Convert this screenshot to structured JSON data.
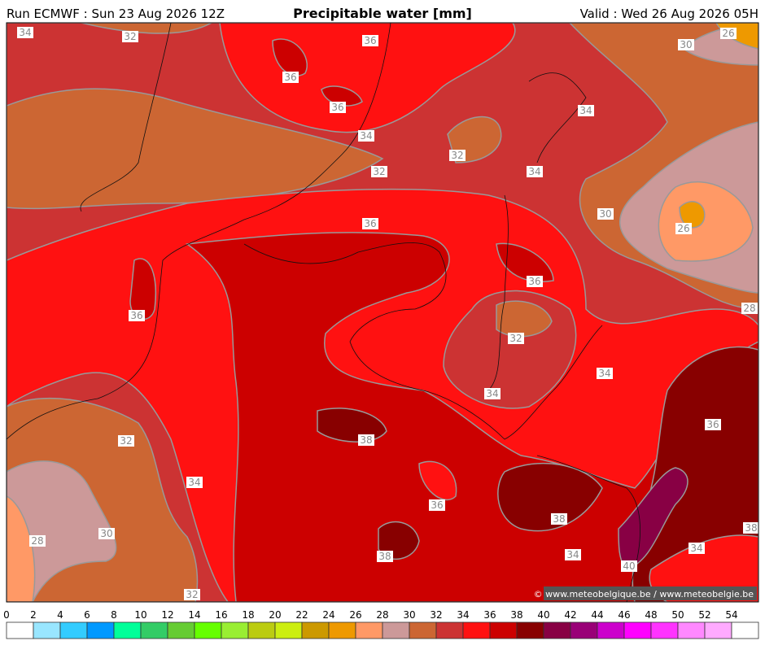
{
  "header": {
    "run": "Run ECMWF : Sun 23 Aug 2026 12Z",
    "title": "Precipitable water [mm]",
    "valid": "Valid : Wed 26 Aug 2026 05H"
  },
  "map": {
    "contour_labels": [
      34,
      32,
      36,
      36,
      36,
      34,
      34,
      32,
      32,
      34,
      30,
      26,
      36,
      30,
      26,
      36,
      36,
      28,
      32,
      34,
      34,
      36,
      32,
      38,
      34,
      36,
      38,
      38,
      30,
      28,
      34,
      34,
      38,
      40,
      32
    ],
    "credit": "© www.meteobelgique.be / www.meteobelgie.be"
  },
  "colorbar": {
    "ticks": [
      0,
      2,
      4,
      6,
      8,
      10,
      12,
      14,
      16,
      18,
      20,
      22,
      24,
      26,
      28,
      30,
      32,
      34,
      36,
      38,
      40,
      42,
      44,
      46,
      48,
      50,
      52,
      54
    ],
    "colors": [
      "#ffffff",
      "#99e6ff",
      "#33ccff",
      "#0099ff",
      "#00ff99",
      "#33cc66",
      "#66cc33",
      "#66ff00",
      "#99ee33",
      "#bbcc11",
      "#ccee11",
      "#cc9900",
      "#ee9900",
      "#ff9966",
      "#cc9999",
      "#cc6633",
      "#cc3333",
      "#ff1111",
      "#cc0000",
      "#880000",
      "#880044",
      "#990077",
      "#cc00cc",
      "#ff00ff",
      "#ff33ff",
      "#ff88ff",
      "#ffaaff",
      "#ffffff"
    ]
  }
}
